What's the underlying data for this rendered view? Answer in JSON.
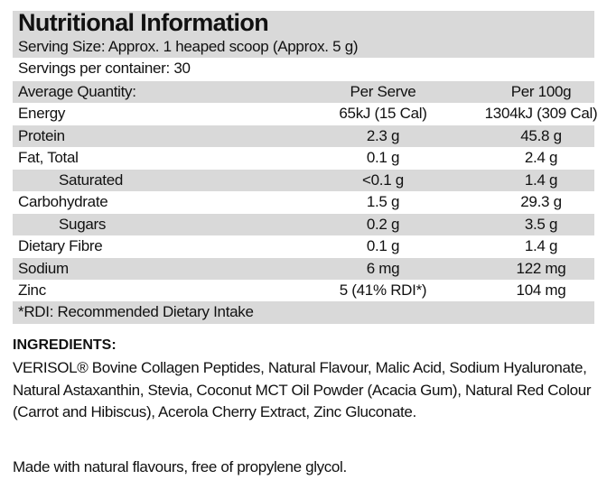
{
  "title": "Nutritional Information",
  "serving_size": "Serving Size: Approx. 1 heaped scoop (Approx. 5 g)",
  "servings_per_container": "Servings per container: 30",
  "table": {
    "headers": [
      "Average Quantity:",
      "Per Serve",
      "Per 100g"
    ],
    "rows": [
      {
        "label": "Energy",
        "per_serve": "65kJ (15 Cal)",
        "per_100g": "1304kJ (309 Cal)",
        "indent": false
      },
      {
        "label": "Protein",
        "per_serve": "2.3 g",
        "per_100g": "45.8 g",
        "indent": false
      },
      {
        "label": "Fat, Total",
        "per_serve": "0.1 g",
        "per_100g": "2.4 g",
        "indent": false
      },
      {
        "label": "Saturated",
        "per_serve": "<0.1 g",
        "per_100g": "1.4 g",
        "indent": true
      },
      {
        "label": "Carbohydrate",
        "per_serve": "1.5 g",
        "per_100g": "29.3 g",
        "indent": false
      },
      {
        "label": "Sugars",
        "per_serve": "0.2 g",
        "per_100g": "3.5 g",
        "indent": true
      },
      {
        "label": "Dietary Fibre",
        "per_serve": "0.1 g",
        "per_100g": "1.4 g",
        "indent": false
      },
      {
        "label": "Sodium",
        "per_serve": "6 mg",
        "per_100g": "122 mg",
        "indent": false
      },
      {
        "label": "Zinc",
        "per_serve": "5 (41% RDI*)",
        "per_100g": "104 mg",
        "indent": false
      }
    ],
    "footnote": "*RDI: Recommended Dietary Intake"
  },
  "ingredients": {
    "heading": "INGREDIENTS:",
    "text": "VERISOL® Bovine Collagen Peptides, Natural Flavour, Malic Acid, Sodium Hyaluronate, Natural Astaxanthin, Stevia, Coconut MCT Oil Powder (Acacia Gum), Natural Red Colour (Carrot and Hibiscus), Acerola Cherry Extract, Zinc Gluconate."
  },
  "note": "Made with natural flavours, free of propylene glycol.",
  "colors": {
    "band": "#d9d9d9",
    "text": "#111111"
  }
}
